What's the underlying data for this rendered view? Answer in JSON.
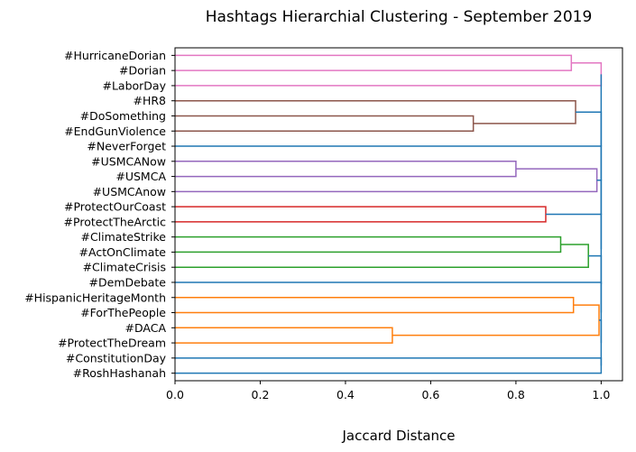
{
  "chart_data": {
    "type": "dendrogram",
    "title": "Hashtags Hierarchial Clustering - September 2019",
    "xlabel": "Jaccard Distance",
    "ylabel": "",
    "xlim": [
      0.0,
      1.05
    ],
    "xticks": [
      "0.0",
      "0.2",
      "0.4",
      "0.6",
      "0.8",
      "1.0"
    ],
    "grid": false,
    "leaves": [
      "#HurricaneDorian",
      "#Dorian",
      "#LaborDay",
      "#HR8",
      "#DoSomething",
      "#EndGunViolence",
      "#NeverForget",
      "#USMCANow",
      "#USMCA",
      "#USMCAnow",
      "#ProtectOurCoast",
      "#ProtectTheArctic",
      "#ClimateStrike",
      "#ActOnClimate",
      "#ClimateCrisis",
      "#DemDebate",
      "#HispanicHeritageMonth",
      "#ForThePeople",
      "#DACA",
      "#ProtectTheDream",
      "#ConstitutionDay",
      "#RoshHashanah"
    ],
    "merges": [
      {
        "left": "leaf:0",
        "right": "leaf:1",
        "distance": 0.93,
        "color": "#e377c2"
      },
      {
        "left": "node:0",
        "right": "leaf:2",
        "distance": 1.0,
        "color": "#e377c2"
      },
      {
        "left": "leaf:4",
        "right": "leaf:5",
        "distance": 0.7,
        "color": "#8c564b"
      },
      {
        "left": "leaf:3",
        "right": "node:2",
        "distance": 0.94,
        "color": "#8c564b"
      },
      {
        "left": "leaf:7",
        "right": "leaf:8",
        "distance": 0.8,
        "color": "#9467bd"
      },
      {
        "left": "node:4",
        "right": "leaf:9",
        "distance": 0.99,
        "color": "#9467bd"
      },
      {
        "left": "leaf:10",
        "right": "leaf:11",
        "distance": 0.87,
        "color": "#d62728"
      },
      {
        "left": "leaf:12",
        "right": "leaf:13",
        "distance": 0.905,
        "color": "#2ca02c"
      },
      {
        "left": "node:7",
        "right": "leaf:14",
        "distance": 0.97,
        "color": "#2ca02c"
      },
      {
        "left": "leaf:16",
        "right": "leaf:17",
        "distance": 0.935,
        "color": "#ff7f0e"
      },
      {
        "left": "leaf:18",
        "right": "leaf:19",
        "distance": 0.51,
        "color": "#ff7f0e"
      },
      {
        "left": "node:9",
        "right": "node:10",
        "distance": 0.995,
        "color": "#ff7f0e"
      },
      {
        "left": "leaf:20",
        "right": "leaf:21",
        "distance": 1.0,
        "color": "#1f77b4"
      },
      {
        "left": "node:11",
        "right": "node:12",
        "distance": 1.0,
        "color": "#1f77b4"
      },
      {
        "left": "leaf:15",
        "right": "node:13",
        "distance": 1.0,
        "color": "#1f77b4"
      },
      {
        "left": "node:8",
        "right": "node:14",
        "distance": 1.0,
        "color": "#1f77b4"
      },
      {
        "left": "node:6",
        "right": "node:15",
        "distance": 1.0,
        "color": "#1f77b4"
      },
      {
        "left": "node:5",
        "right": "node:16",
        "distance": 1.0,
        "color": "#1f77b4"
      },
      {
        "left": "leaf:6",
        "right": "node:17",
        "distance": 1.0,
        "color": "#1f77b4"
      },
      {
        "left": "node:3",
        "right": "node:18",
        "distance": 1.0,
        "color": "#1f77b4"
      },
      {
        "left": "node:1",
        "right": "node:19",
        "distance": 1.0,
        "color": "#1f77b4"
      }
    ]
  }
}
